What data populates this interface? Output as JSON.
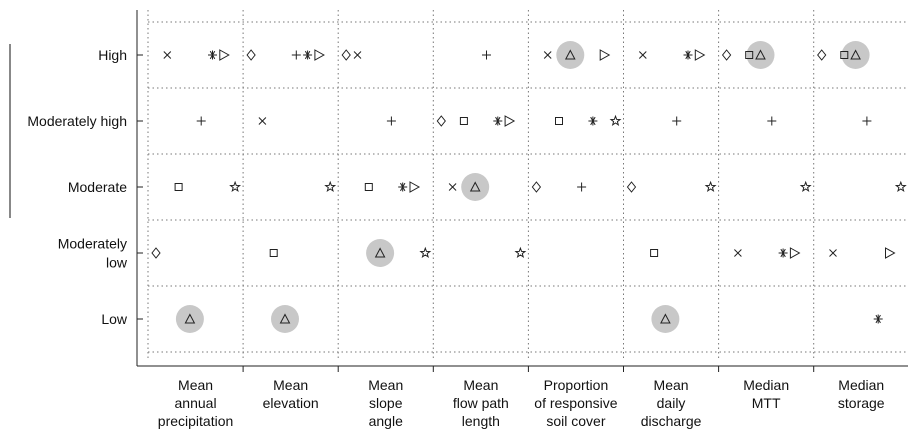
{
  "chart_data": {
    "type": "symbol-matrix",
    "y_categories": [
      [
        "High"
      ],
      [
        "Moderately high"
      ],
      [
        "Moderate"
      ],
      [
        "Moderately",
        "low"
      ],
      [
        "Low"
      ]
    ],
    "x_categories": [
      [
        "Mean",
        "annual",
        "precipitation"
      ],
      [
        "Mean",
        "elevation"
      ],
      [
        "Mean",
        "slope",
        "angle"
      ],
      [
        "Mean",
        "flow path",
        "length"
      ],
      [
        "Proportion",
        "of responsive",
        "soil cover"
      ],
      [
        "Mean",
        "daily",
        "discharge"
      ],
      [
        "Median",
        "MTT"
      ],
      [
        "Median",
        "storage"
      ]
    ],
    "grid": true,
    "highlight_color": "#c8c8c8",
    "series": [
      {
        "marker": "diamond",
        "color": "#222222",
        "values": [
          "Moderately low",
          "High",
          "High",
          "Moderately high",
          "Moderate",
          "Moderate",
          "High",
          "High"
        ]
      },
      {
        "marker": "x",
        "color": "#222222",
        "values": [
          "High",
          "Moderately high",
          "High",
          "Moderate",
          "High",
          "High",
          "Moderately low",
          "Moderately low"
        ]
      },
      {
        "marker": "square",
        "color": "#222222",
        "values": [
          "Moderate",
          "Moderately low",
          "Moderate",
          "Moderately high",
          "Moderately high",
          "Moderately low",
          "High",
          "High"
        ]
      },
      {
        "marker": "triangle",
        "color": "#222222",
        "highlight": true,
        "values": [
          "Low",
          "Low",
          "Moderately low",
          "Moderate",
          "High",
          "Low",
          "High",
          "High"
        ]
      },
      {
        "marker": "plus",
        "color": "#222222",
        "values": [
          "Moderately high",
          "High",
          "Moderately high",
          "High",
          "Moderate",
          "Moderately high",
          "Moderately high",
          "Moderately high"
        ]
      },
      {
        "marker": "asterisk",
        "color": "#222222",
        "values": [
          "High",
          "High",
          "Moderate",
          "Moderately high",
          "Moderately high",
          "High",
          "Moderately low",
          "Low"
        ]
      },
      {
        "marker": "triangle-right",
        "color": "#222222",
        "values": [
          "High",
          "High",
          "Moderate",
          "Moderately high",
          "High",
          "High",
          "Moderately low",
          "Moderately low"
        ]
      },
      {
        "marker": "star",
        "color": "#222222",
        "values": [
          "Moderate",
          "Moderate",
          "Moderately low",
          "Moderately low",
          "Moderately high",
          "Moderate",
          "Moderate",
          "Moderate"
        ]
      }
    ]
  }
}
